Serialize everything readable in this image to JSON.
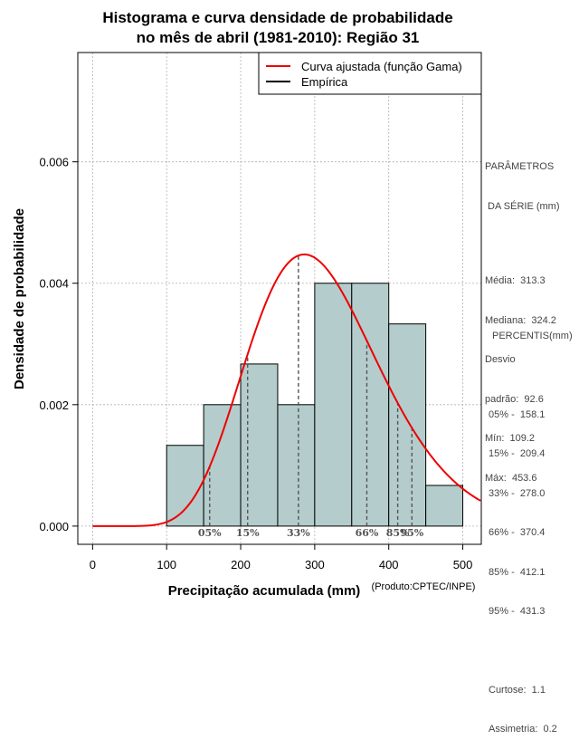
{
  "chart_data": {
    "type": "histogram",
    "title_line1": "Histograma e curva densidade de probabilidade",
    "title_line2": "no mês de abril (1981-2010): Região 31",
    "xlabel": "Precipitação acumulada (mm)",
    "ylabel": "Densidade de probabilidade",
    "credit": "(Produto:CPTEC/INPE)",
    "xlim": [
      -20,
      525
    ],
    "ylim": [
      -0.0003,
      0.0078
    ],
    "x_ticks": [
      0,
      100,
      200,
      300,
      400,
      500
    ],
    "x_tick_labels": [
      "0",
      "100",
      "200",
      "300",
      "400",
      "500"
    ],
    "y_ticks": [
      0.0,
      0.002,
      0.004,
      0.006
    ],
    "y_tick_labels": [
      "0.000",
      "0.002",
      "0.004",
      "0.006"
    ],
    "grid": true,
    "bar_color": "#b4cccc",
    "curve_color": "#ee0000",
    "bins": [
      {
        "from": 100,
        "to": 150,
        "density": 0.00133
      },
      {
        "from": 150,
        "to": 200,
        "density": 0.002
      },
      {
        "from": 200,
        "to": 250,
        "density": 0.00267
      },
      {
        "from": 250,
        "to": 300,
        "density": 0.002
      },
      {
        "from": 300,
        "to": 350,
        "density": 0.004
      },
      {
        "from": 350,
        "to": 400,
        "density": 0.004
      },
      {
        "from": 400,
        "to": 450,
        "density": 0.00333
      },
      {
        "from": 450,
        "to": 500,
        "density": 0.00067
      }
    ],
    "gamma_fit": {
      "shape": 11.45,
      "scale": 27.36
    },
    "legend": [
      {
        "label": "Curva ajustada (função Gama)",
        "color": "#ee0000"
      },
      {
        "label": "Empírica",
        "color": "#000000"
      }
    ],
    "percentile_lines": [
      {
        "label": "05%",
        "value": 158.1
      },
      {
        "label": "15%",
        "value": 209.4
      },
      {
        "label": "33%",
        "value": 278.0
      },
      {
        "label": "66%",
        "value": 370.4
      },
      {
        "label": "85%",
        "value": 412.1
      },
      {
        "label": "95%",
        "value": 431.3
      }
    ]
  },
  "panel": {
    "params_title_1": "PARÂMETROS",
    "params_title_2": " DA SÉRIE (mm)",
    "media": "Média:  313.3",
    "mediana": "Mediana:  324.2",
    "desvio": "Desvio",
    "padrao": "padrão:  92.6",
    "min": "Mín:  109.2",
    "max": "Máx:  453.6",
    "percentis_title": "PERCENTIS(mm)",
    "p05": "05% -  158.1",
    "p15": "15% -  209.4",
    "p33": "33% -  278.0",
    "p66": "66% -  370.4",
    "p85": "85% -  412.1",
    "p95": "95% -  431.3",
    "curtose": "Curtose:  1.1",
    "assimetria": "Assimetria:  0.2"
  }
}
